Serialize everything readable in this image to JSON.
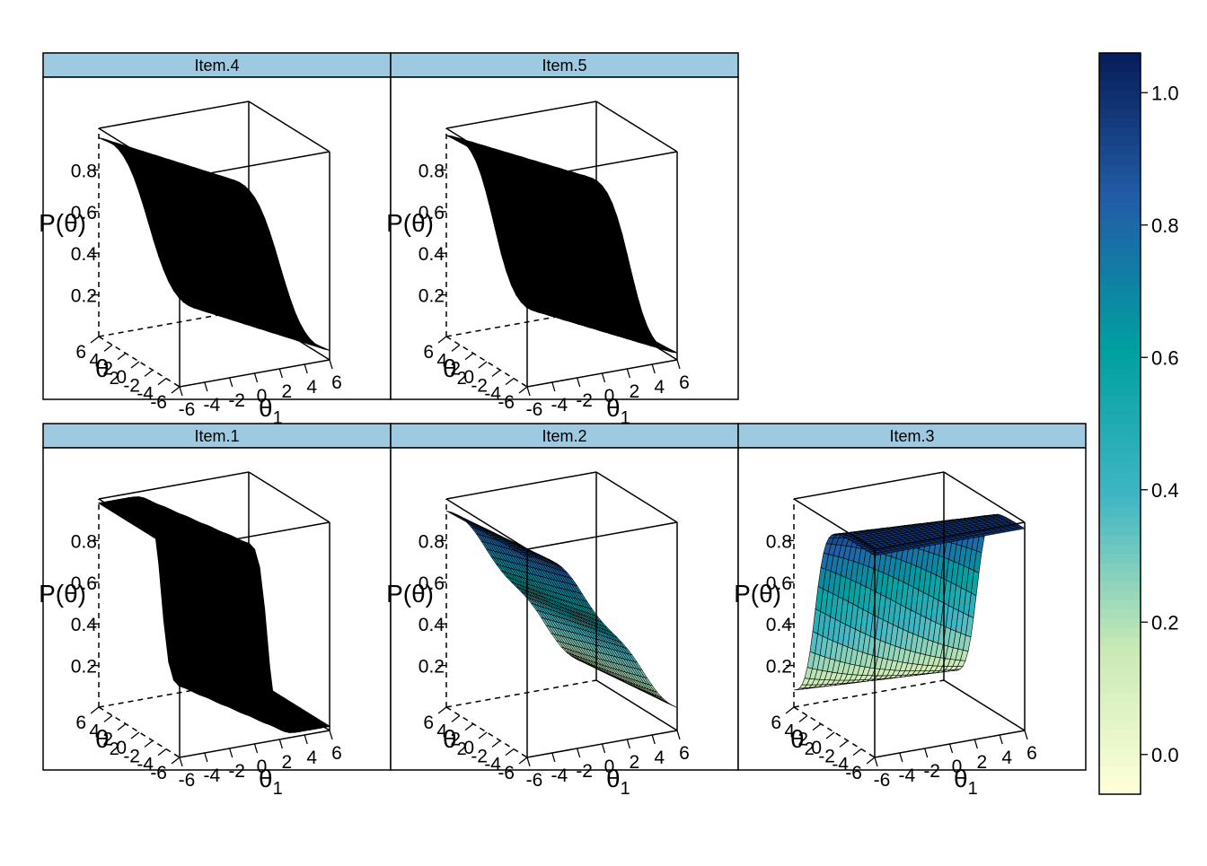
{
  "chart_data": {
    "type": "surface",
    "panels": [
      {
        "name": "Item.4",
        "surface": "black",
        "slope1": 0.9,
        "slope2": 0.3,
        "steps": 1
      },
      {
        "name": "Item.5",
        "surface": "black",
        "slope1": 1.1,
        "slope2": 0.4,
        "steps": 1
      },
      {
        "name": "Item.1",
        "surface": "black",
        "slope1": 3.0,
        "slope2": 0.5,
        "steps": 1
      },
      {
        "name": "Item.2",
        "surface": "colored",
        "slope1": 0.9,
        "slope2": 0.1,
        "steps": 2
      },
      {
        "name": "Item.3",
        "surface": "colored",
        "slope1": 0.2,
        "slope2": 1.4,
        "steps": 2
      }
    ],
    "x_ticks": [
      "-6",
      "-4",
      "-2",
      "0",
      "2",
      "4",
      "6"
    ],
    "y_ticks": [
      "6",
      "4",
      "2",
      "0",
      "-2",
      "-4",
      "-6"
    ],
    "z_ticks": [
      "0.2",
      "0.4",
      "0.6",
      "0.8"
    ],
    "xlabel": "θ",
    "xlabel_sub": "1",
    "ylabel": "θ",
    "ylabel_sub": "2",
    "zlabel": "P(θ)",
    "xlim": [
      -6,
      6
    ],
    "ylim": [
      -6,
      6
    ],
    "zlim": [
      0,
      1
    ],
    "colorbar": {
      "ticks": [
        "0.0",
        "0.2",
        "0.4",
        "0.6",
        "0.8",
        "1.0"
      ],
      "range": [
        -0.06,
        1.06
      ],
      "colors": [
        "#FFFFD9",
        "#C7E9B4",
        "#41B6C4",
        "#00A0A0",
        "#225EA8",
        "#081D58"
      ]
    },
    "strip_color": "#9ECAE1"
  }
}
